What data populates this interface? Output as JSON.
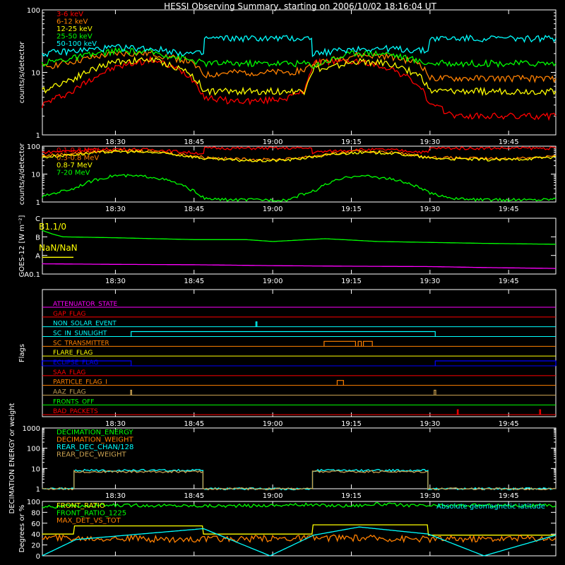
{
  "title": "HESSI Observing Summary, starting on 2006/10/02 18:16:04 UT",
  "time_ticks": [
    "18:30",
    "18:45",
    "19:00",
    "19:15",
    "19:30",
    "19:45"
  ],
  "time_tick_minutes": [
    30,
    45,
    60,
    75,
    90,
    105
  ],
  "time_range_minutes": [
    16.07,
    114
  ],
  "colors": {
    "red": "#ff0000",
    "orange": "#ff8000",
    "yellow": "#ffff00",
    "green": "#00ff00",
    "cyan": "#00ffff",
    "magenta": "#ff00ff",
    "blue": "#0000ff",
    "olive": "#c8a050",
    "white": "#ffffff"
  },
  "chart_data": [
    {
      "type": "line",
      "panel": "lowE",
      "ylabel": "counts/s/detector",
      "y_scale": "log",
      "ylim": [
        1,
        100
      ],
      "y_ticks": [
        "1",
        "10",
        "100"
      ],
      "y_tick_values": [
        1,
        10,
        100
      ],
      "legend_position": "top-left",
      "series": [
        {
          "name": "3-6 keV",
          "color": "red",
          "x": [
            16,
            22,
            30,
            37,
            44,
            47,
            52,
            58,
            63,
            66,
            68,
            70,
            76,
            82,
            88,
            90,
            95,
            100,
            105,
            110,
            114
          ],
          "y": [
            3,
            5,
            12,
            16,
            9,
            4,
            3.5,
            3.5,
            4,
            5,
            14,
            15,
            15,
            12,
            6,
            3,
            2,
            2,
            2,
            2,
            2
          ]
        },
        {
          "name": "6-12 keV",
          "color": "orange",
          "x": [
            16,
            22,
            30,
            37,
            44,
            47,
            52,
            58,
            63,
            66,
            68,
            70,
            76,
            82,
            88,
            90,
            95,
            100,
            105,
            110,
            114
          ],
          "y": [
            12,
            15,
            20,
            20,
            15,
            9,
            10,
            10,
            10,
            11,
            14,
            15,
            19,
            18,
            14,
            8,
            8,
            8,
            8,
            8,
            8
          ]
        },
        {
          "name": "12-25 keV",
          "color": "yellow",
          "x": [
            16,
            22,
            30,
            37,
            44,
            47,
            52,
            58,
            63,
            66,
            68,
            70,
            76,
            82,
            88,
            90,
            95,
            100,
            105,
            110,
            114
          ],
          "y": [
            5,
            8,
            15,
            16,
            10,
            5,
            5,
            5,
            5,
            5,
            12,
            11,
            15,
            14,
            9,
            5,
            5,
            5,
            5,
            5,
            5
          ]
        },
        {
          "name": "25-50 keV",
          "color": "green",
          "x": [
            16,
            22,
            30,
            37,
            44,
            47,
            52,
            58,
            63,
            66,
            68,
            70,
            76,
            82,
            88,
            90,
            95,
            100,
            105,
            110,
            114
          ],
          "y": [
            14,
            17,
            22,
            21,
            16,
            14,
            14,
            14,
            14,
            14,
            13,
            15,
            21,
            20,
            15,
            14,
            14,
            14,
            14,
            14,
            14
          ]
        },
        {
          "name": "50-100 keV",
          "color": "cyan",
          "x": [
            16,
            22,
            30,
            37,
            44,
            46.8,
            47,
            52,
            58,
            63,
            67.4,
            67.6,
            76,
            82,
            89.6,
            90,
            95,
            100,
            105,
            110,
            114
          ],
          "y": [
            20,
            22,
            25,
            24,
            20,
            20,
            35,
            35,
            35,
            35,
            35,
            20,
            24,
            24,
            22,
            35,
            35,
            35,
            35,
            35,
            35
          ]
        }
      ]
    },
    {
      "type": "line",
      "panel": "highE",
      "ylabel": "counts/s/detector",
      "y_scale": "log",
      "ylim": [
        1,
        100
      ],
      "y_ticks": [
        "1",
        "10",
        "100"
      ],
      "y_tick_values": [
        1,
        10,
        100
      ],
      "legend_position": "top-left",
      "series": [
        {
          "name": "0.1-0.3 MeV",
          "color": "red",
          "x": [
            16,
            22,
            30,
            37,
            44,
            46.8,
            47,
            52,
            58,
            63,
            67.4,
            67.6,
            76,
            82,
            89.6,
            90,
            95,
            100,
            105,
            110,
            114
          ],
          "y": [
            60,
            70,
            80,
            75,
            60,
            55,
            85,
            85,
            85,
            85,
            85,
            60,
            75,
            75,
            60,
            85,
            85,
            85,
            85,
            85,
            85
          ]
        },
        {
          "name": "0.3-0.8 MeV",
          "color": "orange",
          "x": [
            16,
            22,
            30,
            37,
            44,
            47,
            52,
            58,
            63,
            68,
            76,
            82,
            90,
            95,
            100,
            105,
            110,
            114
          ],
          "y": [
            45,
            55,
            70,
            65,
            48,
            40,
            35,
            33,
            35,
            45,
            65,
            62,
            40,
            38,
            36,
            36,
            40,
            45
          ]
        },
        {
          "name": "0.8-7 MeV",
          "color": "yellow",
          "x": [
            16,
            22,
            30,
            37,
            44,
            47,
            52,
            58,
            63,
            68,
            76,
            82,
            90,
            95,
            100,
            105,
            110,
            114
          ],
          "y": [
            40,
            50,
            65,
            60,
            44,
            36,
            32,
            30,
            32,
            42,
            60,
            58,
            37,
            35,
            33,
            33,
            37,
            42
          ]
        },
        {
          "name": "7-20 MeV",
          "color": "green",
          "x": [
            16,
            22,
            30,
            37,
            44,
            47,
            52,
            58,
            63,
            68,
            76,
            82,
            90,
            95,
            100,
            105,
            110,
            114
          ],
          "y": [
            1.5,
            3,
            9,
            8,
            3,
            1.3,
            1.2,
            1.2,
            1.2,
            2.5,
            9,
            7,
            2,
            1.3,
            1.2,
            1.2,
            1.2,
            1.3
          ]
        }
      ]
    },
    {
      "type": "line",
      "panel": "goes",
      "ylabel": "GOES-12 [W m⁻²]",
      "y_ticks": [
        "A0.1",
        "A",
        "B",
        "C"
      ],
      "y_tick_values": [
        0,
        1,
        2,
        3
      ],
      "ylim": [
        0,
        3
      ],
      "annotations": [
        "B1.1/0",
        "NaN/NaN"
      ],
      "series": [
        {
          "name": "",
          "color": "green",
          "x": [
            16,
            18,
            20,
            30,
            45,
            55,
            60,
            70,
            80,
            90,
            100,
            114
          ],
          "y": [
            2.35,
            2.15,
            2.0,
            1.95,
            1.85,
            1.85,
            1.75,
            1.9,
            1.75,
            1.7,
            1.65,
            1.6
          ]
        },
        {
          "name": "",
          "color": "magenta",
          "x": [
            16,
            30,
            45,
            60,
            75,
            90,
            100,
            114
          ],
          "y": [
            0.55,
            0.52,
            0.5,
            0.45,
            0.42,
            0.4,
            0.35,
            0.3
          ]
        },
        {
          "name": "",
          "color": "yellow",
          "x": [
            16,
            22
          ],
          "y": [
            0.9,
            0.9
          ]
        }
      ]
    },
    {
      "type": "line",
      "panel": "flags",
      "ylabel": "Flags",
      "flags": [
        {
          "name": "ATTENUATOR_STATE",
          "color": "magenta",
          "segments": []
        },
        {
          "name": "GAP_FLAG",
          "color": "red",
          "segments": []
        },
        {
          "name": "NON_SOLAR_EVENT",
          "color": "cyan",
          "segments": [
            [
              56.8,
              57.0
            ]
          ]
        },
        {
          "name": "SC_IN_SUNLIGHT",
          "color": "cyan",
          "segments": [
            [
              33.0,
              91.0
            ]
          ]
        },
        {
          "name": "SC_TRANSMITTER",
          "color": "orange",
          "segments": [
            [
              69.8,
              75.8
            ],
            [
              76.3,
              76.9
            ],
            [
              77.3,
              79.0
            ]
          ]
        },
        {
          "name": "FLARE_FLAG",
          "color": "yellow",
          "segments": []
        },
        {
          "name": "ECLIPSE_FLAG",
          "color": "blue",
          "segments": [
            [
              16.0,
              33.0
            ],
            [
              91.0,
              114.0
            ]
          ]
        },
        {
          "name": "SAA_FLAG",
          "color": "red",
          "segments": []
        },
        {
          "name": "PARTICLE_FLAG_I",
          "color": "orange",
          "segments": [
            [
              72.3,
              73.5
            ]
          ]
        },
        {
          "name": "AAZ_FLAG",
          "color": "olive",
          "segments": [
            [
              32.9,
              33.1
            ],
            [
              90.8,
              91.1
            ]
          ]
        },
        {
          "name": "FRONTS_OFF",
          "color": "green",
          "segments": []
        },
        {
          "name": "BAD_PACKETS",
          "color": "red",
          "segments": [
            [
              95.2,
              95.4
            ],
            [
              110.9,
              111.1
            ]
          ]
        }
      ]
    },
    {
      "type": "line",
      "panel": "decim",
      "ylabel": "DECIMATION ENERGY or weight",
      "y_scale": "log",
      "ylim": [
        1,
        1000
      ],
      "y_ticks": [
        "1",
        "10",
        "100",
        "1000"
      ],
      "y_tick_values": [
        1,
        10,
        100,
        1000
      ],
      "legend_position": "top-left",
      "series": [
        {
          "name": "DECIMATION_ENERGY",
          "color": "green",
          "x": [],
          "y": []
        },
        {
          "name": "DECIMATION_WEIGHT",
          "color": "orange",
          "x": [],
          "y": []
        },
        {
          "name": "REAR_DEC_CHAN/128",
          "color": "cyan",
          "x": [
            16,
            22.1,
            22.1,
            46.7,
            46.7,
            67.6,
            67.6,
            89.6,
            89.6,
            114
          ],
          "y": [
            1,
            1,
            8,
            8,
            1,
            1,
            8,
            8,
            1,
            1
          ]
        },
        {
          "name": "REAR_DEC_WEIGHT",
          "color": "olive",
          "x": [
            16,
            22.1,
            22.1,
            46.7,
            46.7,
            67.6,
            67.6,
            89.6,
            89.6,
            114
          ],
          "y": [
            1,
            1,
            7,
            7,
            1,
            1,
            7,
            7,
            1,
            1
          ]
        }
      ]
    },
    {
      "type": "line",
      "panel": "ratio",
      "ylabel": "Degrees or %",
      "ylim": [
        0,
        100
      ],
      "y_ticks": [
        "0",
        "20",
        "40",
        "60",
        "80",
        "100"
      ],
      "y_tick_values": [
        0,
        20,
        40,
        60,
        80,
        100
      ],
      "legend_position": "top-left",
      "extra_label": "Absolute geomagnetic latitude",
      "series": [
        {
          "name": "FRONT_RATIO",
          "color": "yellow",
          "x": [
            16,
            22,
            22.2,
            46.6,
            46.8,
            67.5,
            67.7,
            89.5,
            89.7,
            114
          ],
          "y": [
            40,
            40,
            55,
            55,
            40,
            40,
            57,
            57,
            38,
            38
          ]
        },
        {
          "name": "FRONT_RATIO_1225",
          "color": "green",
          "x": [
            16,
            30,
            46,
            47,
            55,
            67,
            68,
            75,
            80,
            89,
            90,
            100,
            114
          ],
          "y": [
            90,
            93,
            92,
            92,
            92,
            94,
            93,
            92,
            95,
            92,
            92,
            93,
            92
          ]
        },
        {
          "name": "MAX_DET_VS_TOT",
          "color": "orange",
          "x": [
            16,
            30,
            45,
            60,
            75,
            90,
            105,
            114
          ],
          "y": [
            33,
            32,
            30,
            32,
            33,
            31,
            32,
            33
          ]
        },
        {
          "name": "",
          "color": "cyan",
          "x": [
            16,
            22.5,
            46.8,
            59.5,
            67.8,
            76.5,
            89.7,
            100.3,
            114
          ],
          "y": [
            0,
            30,
            50,
            0,
            38,
            53,
            40,
            0,
            38
          ]
        }
      ]
    }
  ]
}
